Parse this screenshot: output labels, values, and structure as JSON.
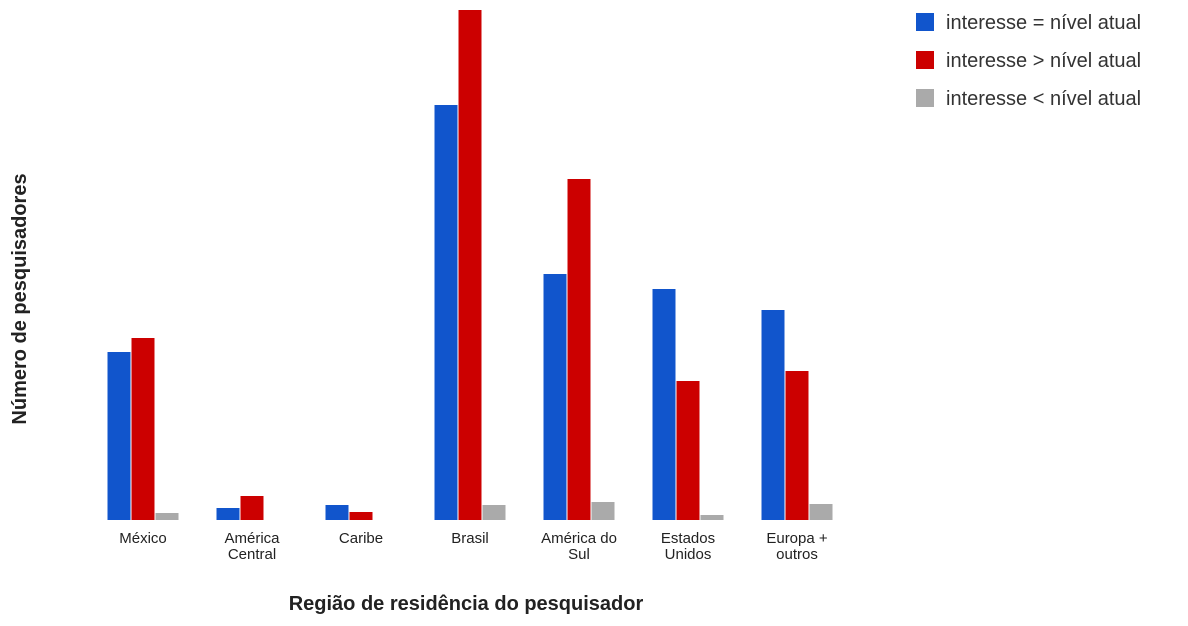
{
  "chart_data": {
    "type": "bar",
    "title": "",
    "xlabel": "Região de residência do pesquisador",
    "ylabel": "Número de pesquisadores",
    "ylim": [
      0,
      510
    ],
    "grid": false,
    "legend_position": "top-right",
    "categories": [
      [
        "México"
      ],
      [
        "América",
        "Central"
      ],
      [
        "Caribe"
      ],
      [
        "Brasil"
      ],
      [
        "América do",
        "Sul"
      ],
      [
        "Estados",
        "Unidos"
      ],
      [
        "Europa +",
        "outros"
      ]
    ],
    "series": [
      {
        "name": "interesse = nível atual",
        "color": "#1155cc",
        "values": [
          168,
          12,
          15,
          415,
          246,
          231,
          210
        ]
      },
      {
        "name": "interesse > nível atual",
        "color": "#cc0000",
        "values": [
          182,
          24,
          8,
          510,
          341,
          139,
          149
        ]
      },
      {
        "name": "interesse < nível atual",
        "color": "#aaaaaa",
        "values": [
          7,
          0,
          0,
          15,
          18,
          5,
          16
        ]
      }
    ]
  }
}
